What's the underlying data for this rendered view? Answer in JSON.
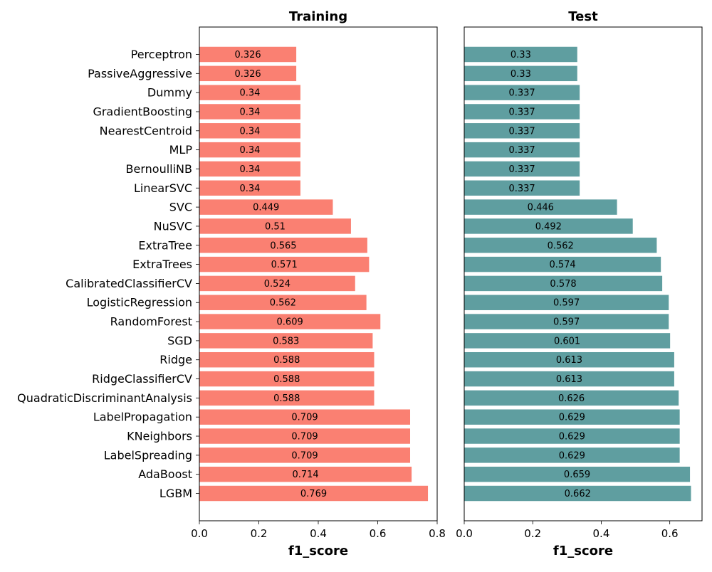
{
  "chart_data": [
    {
      "type": "bar",
      "orientation": "horizontal",
      "title": "Training",
      "xlabel": "f1_score",
      "ylabel": "",
      "xlim": [
        0,
        0.8
      ],
      "xticks": [
        "0.0",
        "0.2",
        "0.4",
        "0.6",
        "0.8"
      ],
      "color": "#fa8072",
      "categories": [
        "Perceptron",
        "PassiveAggressive",
        "Dummy",
        "GradientBoosting",
        "NearestCentroid",
        "MLP",
        "BernoulliNB",
        "LinearSVC",
        "SVC",
        "NuSVC",
        "ExtraTree",
        "ExtraTrees",
        "CalibratedClassifierCV",
        "LogisticRegression",
        "RandomForest",
        "SGD",
        "Ridge",
        "RidgeClassifierCV",
        "QuadraticDiscriminantAnalysis",
        "LabelPropagation",
        "KNeighbors",
        "LabelSpreading",
        "AdaBoost",
        "LGBM"
      ],
      "values": [
        0.326,
        0.326,
        0.34,
        0.34,
        0.34,
        0.34,
        0.34,
        0.34,
        0.449,
        0.51,
        0.565,
        0.571,
        0.524,
        0.562,
        0.609,
        0.583,
        0.588,
        0.588,
        0.588,
        0.709,
        0.709,
        0.709,
        0.714,
        0.769
      ],
      "value_labels": [
        "0.326",
        "0.326",
        "0.34",
        "0.34",
        "0.34",
        "0.34",
        "0.34",
        "0.34",
        "0.449",
        "0.51",
        "0.565",
        "0.571",
        "0.524",
        "0.562",
        "0.609",
        "0.583",
        "0.588",
        "0.588",
        "0.588",
        "0.709",
        "0.709",
        "0.709",
        "0.714",
        "0.769"
      ],
      "grid": false
    },
    {
      "type": "bar",
      "orientation": "horizontal",
      "title": "Test",
      "xlabel": "f1_score",
      "ylabel": "",
      "xlim": [
        0,
        0.6942
      ],
      "xticks": [
        "0.0",
        "0.2",
        "0.4",
        "0.6"
      ],
      "color": "#5f9ea0",
      "categories": [
        "Perceptron",
        "PassiveAggressive",
        "Dummy",
        "GradientBoosting",
        "NearestCentroid",
        "MLP",
        "BernoulliNB",
        "LinearSVC",
        "SVC",
        "NuSVC",
        "ExtraTree",
        "ExtraTrees",
        "CalibratedClassifierCV",
        "LogisticRegression",
        "RandomForest",
        "SGD",
        "Ridge",
        "RidgeClassifierCV",
        "QuadraticDiscriminantAnalysis",
        "LabelPropagation",
        "KNeighbors",
        "LabelSpreading",
        "AdaBoost",
        "LGBM"
      ],
      "values": [
        0.33,
        0.33,
        0.337,
        0.337,
        0.337,
        0.337,
        0.337,
        0.337,
        0.446,
        0.492,
        0.562,
        0.574,
        0.578,
        0.597,
        0.597,
        0.601,
        0.613,
        0.613,
        0.626,
        0.629,
        0.629,
        0.629,
        0.659,
        0.662
      ],
      "value_labels": [
        "0.33",
        "0.33",
        "0.337",
        "0.337",
        "0.337",
        "0.337",
        "0.337",
        "0.337",
        "0.446",
        "0.492",
        "0.562",
        "0.574",
        "0.578",
        "0.597",
        "0.597",
        "0.601",
        "0.613",
        "0.613",
        "0.626",
        "0.629",
        "0.629",
        "0.629",
        "0.659",
        "0.662"
      ],
      "grid": false
    }
  ]
}
